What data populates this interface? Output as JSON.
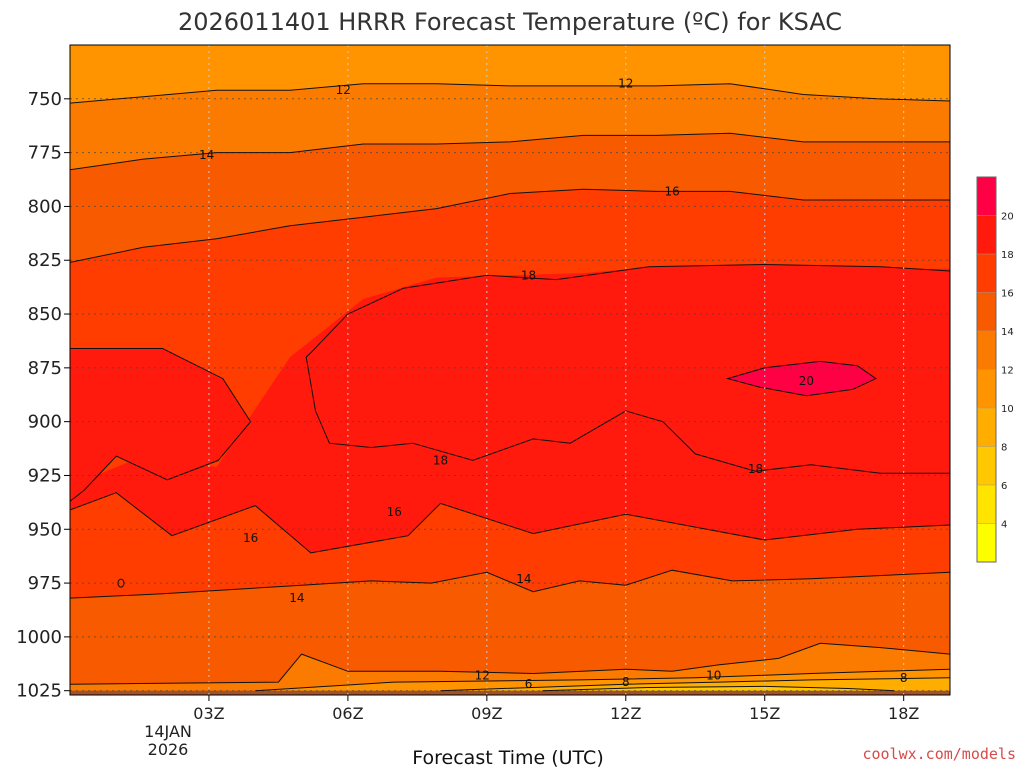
{
  "chart_data": {
    "type": "heatmap",
    "title": "2026011401 HRRR Forecast Temperature (ºC) for KSAC",
    "xlabel": "Forecast Time (UTC)",
    "ylabel": "",
    "x_ticks": [
      "03Z",
      "06Z",
      "09Z",
      "12Z",
      "15Z",
      "18Z"
    ],
    "x_hours": [
      3,
      6,
      9,
      12,
      15,
      18
    ],
    "x_range_hours": [
      0,
      19
    ],
    "date_label": [
      "14JAN",
      "2026"
    ],
    "y_ticks": [
      750,
      775,
      800,
      825,
      850,
      875,
      900,
      925,
      950,
      975,
      1000,
      1025
    ],
    "y_range_hpa": [
      725,
      1027
    ],
    "ground_level_hpa": 1025,
    "contour_levels": [
      {
        "label": "12",
        "hpa": [
          752,
          749,
          746,
          746,
          743,
          743,
          744,
          744,
          744,
          743,
          748,
          750,
          751
        ]
      },
      {
        "label": "14",
        "hpa": [
          783,
          778,
          775,
          775,
          771,
          771,
          770,
          767,
          767,
          766,
          770,
          770,
          770
        ]
      },
      {
        "label": "16",
        "hpa": [
          826,
          819,
          815,
          809,
          805,
          801,
          794,
          792,
          793,
          793,
          797,
          797,
          797
        ]
      },
      {
        "label": "18",
        "hpa": [
          930,
          916,
          921,
          870,
          843,
          833,
          832,
          831,
          828,
          829,
          829,
          829,
          829
        ]
      }
    ],
    "color_scale": {
      "ticks": [
        4,
        6,
        8,
        10,
        12,
        14,
        16,
        18,
        20
      ],
      "colors": [
        "#fdff00",
        "#ffe400",
        "#ffc800",
        "#ffae00",
        "#ff9400",
        "#fb7a00",
        "#f85a00",
        "#ff3d00",
        "#ff1a0d",
        "#ff0044"
      ]
    },
    "contour_labels": [
      {
        "text": "12",
        "hour": 5.9,
        "hpa": 746
      },
      {
        "text": "12",
        "hour": 12.0,
        "hpa": 743
      },
      {
        "text": "14",
        "hour": 2.95,
        "hpa": 776
      },
      {
        "text": "16",
        "hour": 13.0,
        "hpa": 793
      },
      {
        "text": "18",
        "hour": 9.9,
        "hpa": 832
      },
      {
        "text": "20",
        "hour": 15.9,
        "hpa": 881
      },
      {
        "text": "18",
        "hour": 8.0,
        "hpa": 918
      },
      {
        "text": "18",
        "hour": 14.8,
        "hpa": 922
      },
      {
        "text": "16",
        "hour": 7.0,
        "hpa": 942
      },
      {
        "text": "16",
        "hour": 3.9,
        "hpa": 954
      },
      {
        "text": "14",
        "hour": 4.9,
        "hpa": 982
      },
      {
        "text": "14",
        "hour": 9.8,
        "hpa": 973
      },
      {
        "text": "12",
        "hour": 8.9,
        "hpa": 1018
      },
      {
        "text": "10",
        "hour": 13.9,
        "hpa": 1018
      },
      {
        "text": "8",
        "hour": 18.0,
        "hpa": 1019
      },
      {
        "text": "8",
        "hour": 12.0,
        "hpa": 1021
      },
      {
        "text": "6",
        "hour": 9.9,
        "hpa": 1022
      }
    ],
    "grid": true,
    "legend_position": "right"
  },
  "credit": "coolwx.com/models"
}
